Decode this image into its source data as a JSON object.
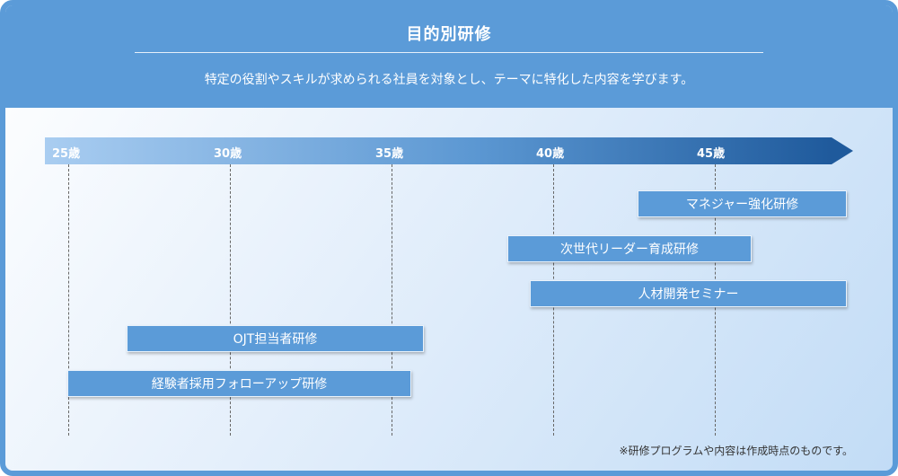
{
  "header": {
    "title": "目的別研修",
    "subtitle": "特定の役割やスキルが求められる社員を対象とし、テーマに特化した内容を学びます。"
  },
  "timeline": {
    "ticks": [
      "25歳",
      "30歳",
      "35歳",
      "40歳",
      "45歳"
    ]
  },
  "programs": [
    {
      "label": "マネジャー強化研修"
    },
    {
      "label": "次世代リーダー育成研修"
    },
    {
      "label": "人材開発セミナー"
    },
    {
      "label": "OJT担当者研修"
    },
    {
      "label": "経験者採用フォローアップ研修"
    }
  ],
  "footnote": "※研修プログラムや内容は作成時点のものです。",
  "colors": {
    "primary": "#5b9bd8",
    "axis_dark": "#1f5a9c",
    "axis_light": "#a9cdf1"
  }
}
